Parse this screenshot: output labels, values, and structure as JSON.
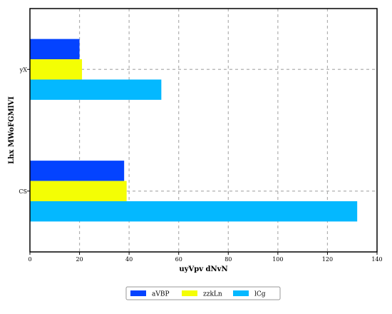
{
  "chart_data": {
    "type": "bar",
    "orientation": "horizontal",
    "title": "",
    "xlabel": "uyVpv  dNvN",
    "ylabel": "Lhx MWoFGMlVI",
    "categories": [
      "CS",
      "yX"
    ],
    "series": [
      {
        "name": "aVBP",
        "color": "#0443ff",
        "values": [
          38,
          20
        ]
      },
      {
        "name": "zzkLn",
        "color": "#f4fe04",
        "values": [
          39,
          21
        ]
      },
      {
        "name": "lCg",
        "color": "#04b8ff",
        "values": [
          132,
          53
        ]
      }
    ],
    "xlim": [
      0,
      140
    ],
    "xticks": [
      0,
      20,
      40,
      60,
      80,
      100,
      120,
      140
    ],
    "grid": true,
    "grid_style": "dashed",
    "legend_position": "bottom-center"
  }
}
